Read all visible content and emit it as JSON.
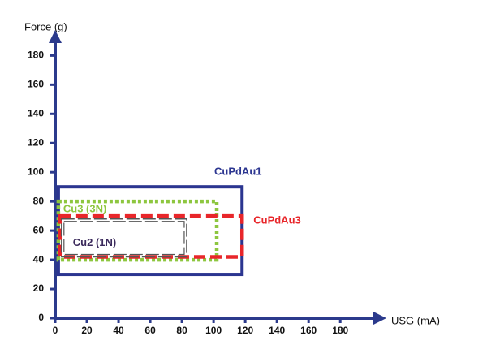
{
  "chart_data": {
    "type": "range-box",
    "x_label": "USG (mA)",
    "y_label": "Force (g)",
    "xlim": [
      0,
      205
    ],
    "ylim": [
      0,
      193
    ],
    "xticks": [
      0,
      20,
      40,
      60,
      80,
      100,
      120,
      140,
      160,
      180
    ],
    "yticks": [
      0,
      20,
      40,
      60,
      80,
      100,
      120,
      140,
      160,
      180
    ],
    "axis_color": "#2b3a8c",
    "series": [
      {
        "name": "CuPdAu1",
        "color": "#2b3590",
        "line_style": "solid",
        "x": [
          2,
          118
        ],
        "y": [
          30,
          90
        ]
      },
      {
        "name": "Cu3 (3N)",
        "color": "#8dc63f",
        "line_style": "dotted",
        "x": [
          2,
          102
        ],
        "y": [
          40,
          80
        ]
      },
      {
        "name": "CuPdAu3",
        "color": "#e8262a",
        "line_style": "dashed",
        "x": [
          3,
          118
        ],
        "y": [
          42,
          70
        ]
      },
      {
        "name": "Cu2 (1N)",
        "color": "#555555",
        "line_style": "thin-dashed",
        "x": [
          4,
          83
        ],
        "y": [
          42,
          68
        ]
      }
    ]
  }
}
